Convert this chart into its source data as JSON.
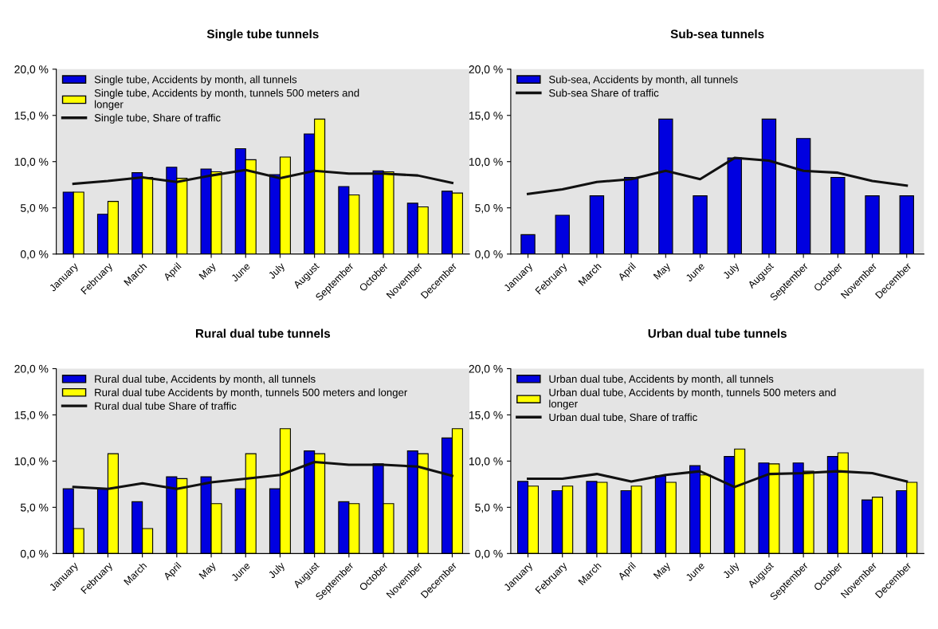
{
  "chart_data": [
    {
      "type": "bar",
      "title": "Single tube tunnels",
      "categories": [
        "January",
        "February",
        "March",
        "April",
        "May",
        "June",
        "July",
        "August",
        "September",
        "October",
        "November",
        "December"
      ],
      "ylim": [
        0,
        20
      ],
      "yticks": [
        {
          "value": 0,
          "label": "0,0 %"
        },
        {
          "value": 5,
          "label": "5,0 %"
        },
        {
          "value": 10,
          "label": "10,0 %"
        },
        {
          "value": 15,
          "label": "15,0 %"
        },
        {
          "value": 20,
          "label": "20,0 %"
        }
      ],
      "legend": "top left",
      "grid": false,
      "series": [
        {
          "name": "Single tube, Accidents by month, all tunnels",
          "color": "#0000e0",
          "values": [
            6.7,
            4.3,
            8.8,
            9.4,
            9.2,
            11.4,
            8.6,
            13.0,
            7.3,
            9.0,
            5.5,
            6.8
          ]
        },
        {
          "name": "Single tube, Accidents by month, tunnels 500 meters and\nlonger",
          "color": "#ffff00",
          "values": [
            6.7,
            5.7,
            8.3,
            8.2,
            8.9,
            10.2,
            10.5,
            14.6,
            6.4,
            8.9,
            5.1,
            6.6
          ]
        },
        {
          "name": "Single tube, Share of traffic",
          "type": "line",
          "color": "#111111",
          "values": [
            7.6,
            7.9,
            8.3,
            7.8,
            8.5,
            9.1,
            8.2,
            9.0,
            8.7,
            8.7,
            8.5,
            7.7
          ]
        }
      ]
    },
    {
      "type": "bar",
      "title": "Sub-sea tunnels",
      "categories": [
        "January",
        "February",
        "March",
        "April",
        "May",
        "June",
        "July",
        "August",
        "September",
        "October",
        "November",
        "December"
      ],
      "ylim": [
        0,
        20
      ],
      "yticks": [
        {
          "value": 0,
          "label": "0,0 %"
        },
        {
          "value": 5,
          "label": "5,0 %"
        },
        {
          "value": 10,
          "label": "10,0 %"
        },
        {
          "value": 15,
          "label": "15,0 %"
        },
        {
          "value": 20,
          "label": "20,0 %"
        }
      ],
      "legend": "top left",
      "grid": false,
      "series": [
        {
          "name": "Sub-sea, Accidents by month, all tunnels",
          "color": "#0000e0",
          "values": [
            2.1,
            4.2,
            6.3,
            8.3,
            14.6,
            6.3,
            10.4,
            14.6,
            12.5,
            8.3,
            6.3,
            6.3
          ]
        },
        {
          "name": "Sub-sea Share of traffic",
          "type": "line",
          "color": "#111111",
          "values": [
            6.5,
            7.0,
            7.8,
            8.1,
            9.0,
            8.1,
            10.4,
            10.1,
            9.0,
            8.8,
            7.9,
            7.4
          ]
        }
      ]
    },
    {
      "type": "bar",
      "title": "Rural dual tube tunnels",
      "categories": [
        "January",
        "February",
        "March",
        "April",
        "May",
        "June",
        "July",
        "August",
        "September",
        "October",
        "November",
        "December"
      ],
      "ylim": [
        0,
        20
      ],
      "yticks": [
        {
          "value": 0,
          "label": "0,0 %"
        },
        {
          "value": 5,
          "label": "5,0 %"
        },
        {
          "value": 10,
          "label": "10,0 %"
        },
        {
          "value": 15,
          "label": "15,0 %"
        },
        {
          "value": 20,
          "label": "20,0 %"
        }
      ],
      "legend": "top left",
      "grid": false,
      "series": [
        {
          "name": "Rural dual tube, Accidents by month, all tunnels",
          "color": "#0000e0",
          "values": [
            7.0,
            7.0,
            5.6,
            8.3,
            8.3,
            7.0,
            7.0,
            11.1,
            5.6,
            9.7,
            11.1,
            12.5
          ]
        },
        {
          "name": "Rural dual tube Accidents by month, tunnels 500 meters and longer",
          "color": "#ffff00",
          "values": [
            2.7,
            10.8,
            2.7,
            8.1,
            5.4,
            10.8,
            13.5,
            10.8,
            5.4,
            5.4,
            10.8,
            13.5
          ]
        },
        {
          "name": "Rural dual tube Share of traffic",
          "type": "line",
          "color": "#111111",
          "values": [
            7.2,
            7.0,
            7.6,
            7.0,
            7.7,
            8.1,
            8.5,
            9.9,
            9.6,
            9.6,
            9.4,
            8.4
          ]
        }
      ]
    },
    {
      "type": "bar",
      "title": "Urban dual tube tunnels",
      "categories": [
        "January",
        "February",
        "March",
        "April",
        "May",
        "June",
        "July",
        "August",
        "September",
        "October",
        "November",
        "December"
      ],
      "ylim": [
        0,
        20
      ],
      "yticks": [
        {
          "value": 0,
          "label": "0,0 %"
        },
        {
          "value": 5,
          "label": "5,0 %"
        },
        {
          "value": 10,
          "label": "10,0 %"
        },
        {
          "value": 15,
          "label": "15,0 %"
        },
        {
          "value": 20,
          "label": "20,0 %"
        }
      ],
      "legend": "top left",
      "grid": false,
      "series": [
        {
          "name": "Urban dual tube, Accidents by month, all tunnels",
          "color": "#0000e0",
          "values": [
            7.8,
            6.8,
            7.8,
            6.8,
            8.4,
            9.5,
            10.5,
            9.8,
            9.8,
            10.5,
            5.8,
            6.8
          ]
        },
        {
          "name": "Urban dual tube, Accidents by month, tunnels 500 meters and\nlonger",
          "color": "#ffff00",
          "values": [
            7.3,
            7.3,
            7.7,
            7.3,
            7.7,
            8.5,
            11.3,
            9.7,
            8.9,
            10.9,
            6.1,
            7.7
          ]
        },
        {
          "name": "Urban dual tube, Share of traffic",
          "type": "line",
          "color": "#111111",
          "values": [
            8.1,
            8.1,
            8.6,
            7.8,
            8.5,
            8.9,
            7.2,
            8.6,
            8.7,
            8.9,
            8.7,
            7.8
          ]
        }
      ]
    }
  ]
}
